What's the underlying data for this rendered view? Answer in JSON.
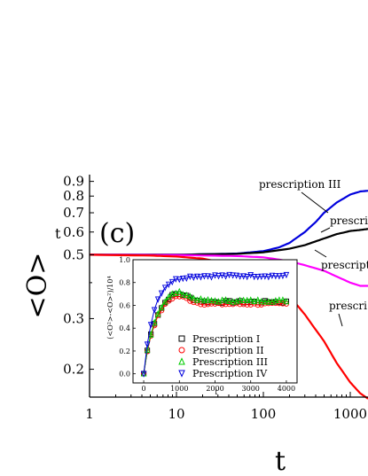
{
  "chart_data": [
    {
      "type": "line",
      "panel_label": "(c)",
      "xlabel": "t",
      "ylabel": "<O>",
      "ylabel_sub": "t",
      "xscale": "log",
      "yscale": "log",
      "xlim": [
        1,
        1600
      ],
      "ylim": [
        0.16,
        0.95
      ],
      "xticks": [
        {
          "v": 1,
          "label": "1"
        },
        {
          "v": 10,
          "label": "10"
        },
        {
          "v": 100,
          "label": "100"
        },
        {
          "v": 1000,
          "label": "1000"
        }
      ],
      "yticks": [
        {
          "v": 0.2,
          "label": "0.2"
        },
        {
          "v": 0.3,
          "label": "0.3"
        },
        {
          "v": 0.5,
          "label": "0.5"
        },
        {
          "v": 0.6,
          "label": "0.6"
        },
        {
          "v": 0.7,
          "label": "0.7"
        },
        {
          "v": 0.8,
          "label": "0.8"
        },
        {
          "v": 0.9,
          "label": "0.9"
        }
      ],
      "colors": {
        "III": "#0000dd",
        "I": "#000000",
        "II": "#ff0000",
        "IV": "#ff00ff"
      },
      "series": [
        {
          "id": "III",
          "color": "#0000dd",
          "x": [
            1,
            10,
            50,
            100,
            150,
            200,
            300,
            400,
            500,
            700,
            1000,
            1300,
            1600
          ],
          "y": [
            0.5,
            0.5,
            0.505,
            0.515,
            0.53,
            0.55,
            0.6,
            0.65,
            0.7,
            0.76,
            0.81,
            0.83,
            0.835
          ]
        },
        {
          "id": "I",
          "color": "#000000",
          "x": [
            1,
            10,
            50,
            100,
            200,
            300,
            500,
            700,
            1000,
            1300,
            1600
          ],
          "y": [
            0.5,
            0.5,
            0.504,
            0.51,
            0.525,
            0.54,
            0.57,
            0.59,
            0.605,
            0.61,
            0.615
          ]
        },
        {
          "id": "IV",
          "color": "#ff00ff",
          "x": [
            1,
            10,
            50,
            100,
            200,
            300,
            500,
            700,
            1000,
            1300,
            1600
          ],
          "y": [
            0.5,
            0.499,
            0.495,
            0.49,
            0.475,
            0.46,
            0.44,
            0.42,
            0.4,
            0.39,
            0.39
          ]
        },
        {
          "id": "II",
          "color": "#ff0000",
          "x": [
            1,
            5,
            10,
            20,
            50,
            100,
            200,
            300,
            500,
            700,
            1000,
            1300,
            1600
          ],
          "y": [
            0.5,
            0.497,
            0.493,
            0.485,
            0.46,
            0.42,
            0.36,
            0.31,
            0.25,
            0.21,
            0.18,
            0.165,
            0.158
          ]
        }
      ],
      "annotations": [
        {
          "text": "prescription III"
        },
        {
          "text": "prescripti"
        },
        {
          "text": "prescript"
        },
        {
          "text": "prescri"
        }
      ]
    },
    {
      "type": "scatter",
      "xlabel": "t",
      "ylabel": "(<O²>-<O>²)/10⁴",
      "xlim": [
        -300,
        4300
      ],
      "ylim": [
        -0.08,
        1.0
      ],
      "xticks": [
        0,
        1000,
        2000,
        3000,
        4000
      ],
      "yticks": [
        "0.0",
        "0.2",
        "0.4",
        "0.6",
        "0.8",
        "1.0"
      ],
      "legend": [
        {
          "label": "Prescription I",
          "marker": "square",
          "color": "#000000"
        },
        {
          "label": "Prescription II",
          "marker": "circle",
          "color": "#ff0000"
        },
        {
          "label": "Prescription III",
          "marker": "triangle-up",
          "color": "#00cc00"
        },
        {
          "label": "Prescription IV",
          "marker": "triangle-down",
          "color": "#0000dd"
        }
      ],
      "series": [
        {
          "id": "I",
          "color": "#000000",
          "level": 0.63
        },
        {
          "id": "II",
          "color": "#ff0000",
          "level": 0.61
        },
        {
          "id": "III",
          "color": "#00cc00",
          "level": 0.64
        },
        {
          "id": "IV",
          "color": "#0000dd",
          "level": 0.86
        }
      ]
    }
  ]
}
